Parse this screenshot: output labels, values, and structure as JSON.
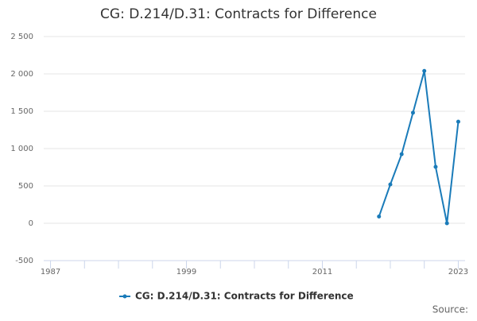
{
  "chart_data": {
    "type": "line",
    "title": "CG: D.214/D.31: Contracts for Difference",
    "x": [
      2016,
      2017,
      2018,
      2019,
      2020,
      2021,
      2022,
      2023
    ],
    "series": [
      {
        "name": "CG: D.214/D.31: Contracts for Difference",
        "color": "#1a7bb9",
        "values": [
          90,
          520,
          925,
          1480,
          2040,
          755,
          0,
          1360
        ]
      }
    ],
    "xlim": [
      1986.4,
      2023.6
    ],
    "xticks": [
      1987,
      1999,
      2011,
      2023
    ],
    "xminorticks": [
      1990,
      1993,
      1996,
      2002,
      2005,
      2008,
      2014,
      2017,
      2020
    ],
    "ylim": [
      -500,
      2500
    ],
    "yticks": [
      -500,
      0,
      500,
      {
        "value": 1000,
        "label": "1 000"
      },
      {
        "value": 1500,
        "label": "1 500"
      },
      {
        "value": 2000,
        "label": "2 000"
      },
      {
        "value": 2500,
        "label": "2 500"
      }
    ],
    "grid": true,
    "legend": "bottom",
    "source": "Source:"
  }
}
